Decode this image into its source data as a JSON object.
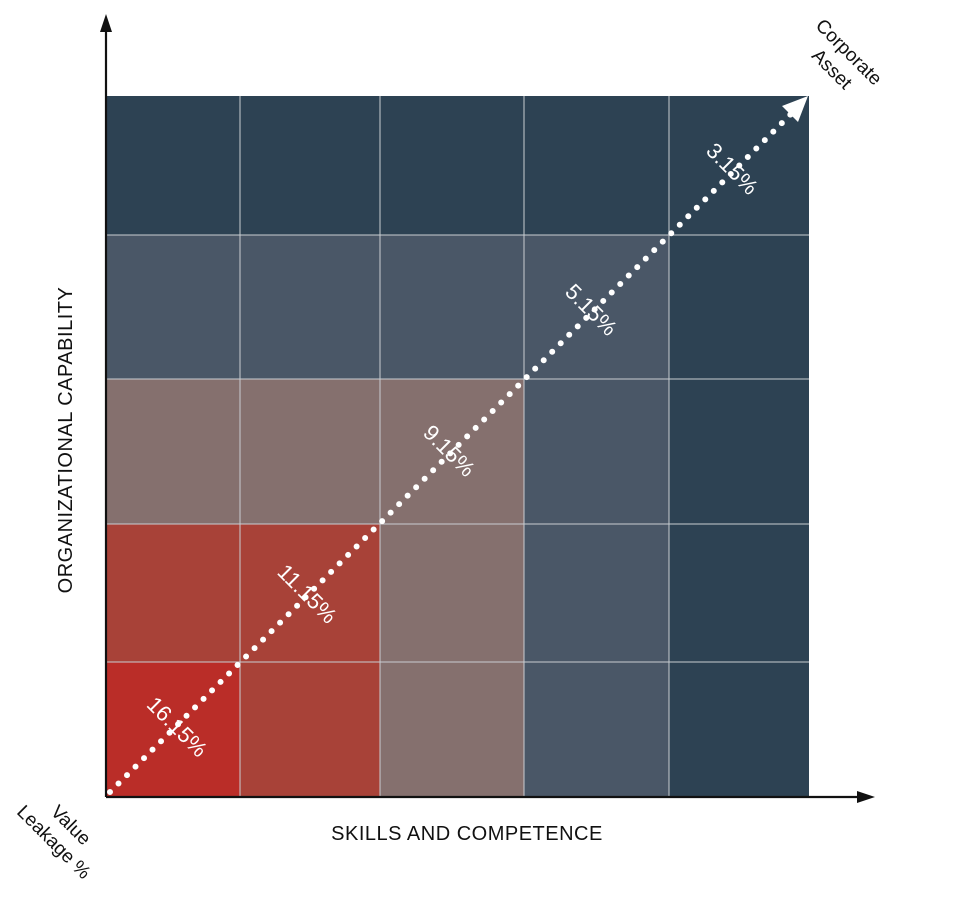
{
  "diagram": {
    "axes": {
      "x_label": "SKILLS AND COMPETENCE",
      "y_label": "ORGANIZATIONAL CAPABILITY"
    },
    "grid": {
      "columns": 5,
      "rows": 5,
      "row_colors_top_to_bottom": [
        [
          "#2d4253",
          "#2d4253",
          "#2d4253",
          "#2d4253",
          "#2d4253"
        ],
        [
          "#4a5767",
          "#4a5767",
          "#4a5767",
          "#4a5767",
          "#2d4253"
        ],
        [
          "#85706e",
          "#85706e",
          "#85706e",
          "#4a5767",
          "#2d4253"
        ],
        [
          "#a84238",
          "#a84238",
          "#85706e",
          "#4a5767",
          "#2d4253"
        ],
        [
          "#ba2d28",
          "#a84238",
          "#85706e",
          "#4a5767",
          "#2d4253"
        ]
      ]
    },
    "arrow": {
      "start_label": "Value Leakage %",
      "start_label_lines": [
        "Value",
        "Leakage %"
      ],
      "end_label": "Corporate Asset",
      "end_label_lines": [
        "Corporate",
        "Asset"
      ]
    },
    "percent_labels": [
      "16.15%",
      "11.15%",
      "9.15%",
      "5.15%",
      "3.15%"
    ]
  }
}
